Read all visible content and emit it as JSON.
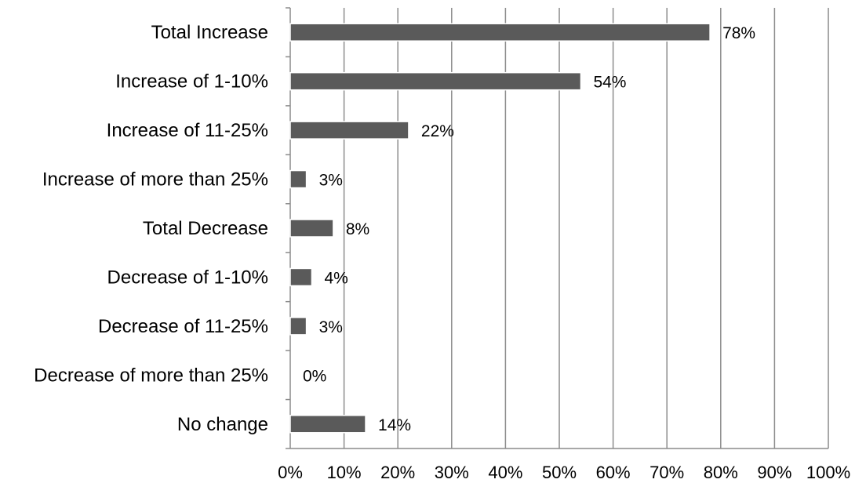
{
  "chart_data": {
    "type": "bar",
    "orientation": "horizontal",
    "categories": [
      "Total Increase",
      "Increase of 1-10%",
      "Increase of 11-25%",
      "Increase of more than 25%",
      "Total Decrease",
      "Decrease of 1-10%",
      "Decrease of 11-25%",
      "Decrease of more than 25%",
      "No change"
    ],
    "values": [
      78,
      54,
      22,
      3,
      8,
      4,
      3,
      0,
      14
    ],
    "value_labels": [
      "78%",
      "54%",
      "22%",
      "3%",
      "8%",
      "4%",
      "3%",
      "0%",
      "14%"
    ],
    "x_ticks": [
      "0%",
      "10%",
      "20%",
      "30%",
      "40%",
      "50%",
      "60%",
      "70%",
      "80%",
      "90%",
      "100%"
    ],
    "xlim": [
      0,
      100
    ],
    "grid": true,
    "bar_color": "#5a5a5a",
    "title": "",
    "xlabel": "",
    "ylabel": ""
  }
}
